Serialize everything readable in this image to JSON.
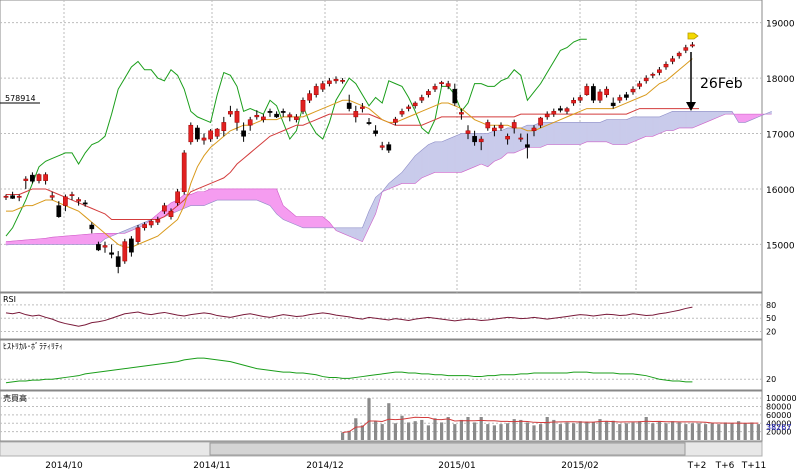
{
  "chart_data": {
    "type": "candlestick",
    "price_axis": {
      "ticks": [
        15000,
        16000,
        17000,
        18000,
        19000
      ],
      "ylim": [
        14250,
        19300
      ]
    },
    "x_labels": [
      "2014/10",
      "2014/11",
      "2014/12",
      "2015/01",
      "2015/02",
      "T+2",
      "T+6",
      "T+11"
    ],
    "price_tag": "578914",
    "annotation": "26Feb",
    "candles": [
      [
        15850,
        15900,
        15800,
        15870
      ],
      [
        15880,
        15950,
        15820,
        15830
      ],
      [
        15850,
        15900,
        15780,
        15870
      ],
      [
        16150,
        16230,
        16000,
        16180
      ],
      [
        16250,
        16300,
        16100,
        16140
      ],
      [
        16150,
        16280,
        16100,
        16260
      ],
      [
        16150,
        16300,
        16080,
        16260
      ],
      [
        15850,
        15950,
        15800,
        15880
      ],
      [
        15700,
        15780,
        15480,
        15500
      ],
      [
        15700,
        15900,
        15600,
        15860
      ],
      [
        15900,
        15950,
        15800,
        15900
      ],
      [
        15780,
        15850,
        15700,
        15810
      ],
      [
        15750,
        15800,
        15680,
        15740
      ],
      [
        15350,
        15400,
        15200,
        15280
      ],
      [
        15000,
        15050,
        14880,
        14900
      ],
      [
        14950,
        15050,
        14850,
        14980
      ],
      [
        14850,
        15000,
        14750,
        14820
      ],
      [
        14780,
        14880,
        14480,
        14600
      ],
      [
        14700,
        15100,
        14650,
        15050
      ],
      [
        15100,
        15150,
        14780,
        14860
      ],
      [
        15050,
        15350,
        15000,
        15300
      ],
      [
        15300,
        15400,
        15250,
        15360
      ],
      [
        15350,
        15450,
        15300,
        15420
      ],
      [
        15400,
        15500,
        15350,
        15450
      ],
      [
        15600,
        15750,
        15550,
        15700
      ],
      [
        15500,
        15650,
        15450,
        15600
      ],
      [
        15750,
        16000,
        15700,
        15950
      ],
      [
        15950,
        16700,
        15900,
        16650
      ],
      [
        16850,
        17200,
        16800,
        17150
      ],
      [
        17100,
        17150,
        16850,
        16900
      ],
      [
        16880,
        17000,
        16800,
        16920
      ],
      [
        16900,
        17080,
        16850,
        17050
      ],
      [
        16950,
        17100,
        16900,
        17080
      ],
      [
        17050,
        17300,
        16950,
        17200
      ],
      [
        17350,
        17500,
        17300,
        17400
      ],
      [
        17200,
        17450,
        17050,
        17400
      ],
      [
        17050,
        17200,
        16850,
        16950
      ],
      [
        17150,
        17300,
        17050,
        17250
      ],
      [
        17300,
        17420,
        17250,
        17330
      ],
      [
        17250,
        17350,
        17200,
        17300
      ],
      [
        17400,
        17450,
        17300,
        17380
      ],
      [
        17350,
        17400,
        17280,
        17300
      ],
      [
        17400,
        17450,
        17300,
        17380
      ],
      [
        17300,
        17380,
        17220,
        17340
      ],
      [
        17250,
        17350,
        17200,
        17300
      ],
      [
        17400,
        17650,
        17350,
        17600
      ],
      [
        17600,
        17780,
        17550,
        17720
      ],
      [
        17700,
        17900,
        17650,
        17850
      ],
      [
        17800,
        17950,
        17750,
        17900
      ],
      [
        17900,
        18000,
        17850,
        17950
      ],
      [
        17950,
        18030,
        17900,
        17980
      ],
      [
        17950,
        18000,
        17900,
        17960
      ],
      [
        17550,
        17700,
        17400,
        17450
      ],
      [
        17300,
        17500,
        17200,
        17400
      ],
      [
        17450,
        17550,
        17380,
        17480
      ],
      [
        17200,
        17280,
        17150,
        17180
      ],
      [
        17050,
        17150,
        16950,
        17000
      ],
      [
        16750,
        16850,
        16700,
        16780
      ],
      [
        16800,
        16850,
        16650,
        16700
      ],
      [
        17200,
        17300,
        17150,
        17260
      ],
      [
        17350,
        17450,
        17300,
        17400
      ],
      [
        17450,
        17520,
        17400,
        17480
      ],
      [
        17500,
        17580,
        17450,
        17550
      ],
      [
        17600,
        17700,
        17550,
        17650
      ],
      [
        17700,
        17800,
        17650,
        17760
      ],
      [
        17800,
        17900,
        17750,
        17850
      ],
      [
        17900,
        17950,
        17850,
        17920
      ],
      [
        17850,
        17950,
        17800,
        17900
      ],
      [
        17800,
        17900,
        17500,
        17550
      ],
      [
        17350,
        17450,
        17250,
        17380
      ],
      [
        17000,
        17150,
        16900,
        17050
      ],
      [
        16950,
        17050,
        16780,
        16850
      ],
      [
        16850,
        16950,
        16700,
        16900
      ],
      [
        17100,
        17250,
        17050,
        17200
      ],
      [
        17050,
        17150,
        16950,
        17100
      ],
      [
        17100,
        17200,
        17050,
        17150
      ],
      [
        16900,
        17000,
        16800,
        16950
      ],
      [
        17100,
        17250,
        17000,
        17200
      ],
      [
        16900,
        17000,
        16850,
        16920
      ],
      [
        16800,
        17000,
        16550,
        16750
      ],
      [
        17050,
        17150,
        16950,
        17100
      ],
      [
        17150,
        17300,
        17100,
        17280
      ],
      [
        17300,
        17400,
        17250,
        17350
      ],
      [
        17350,
        17450,
        17300,
        17400
      ],
      [
        17450,
        17500,
        17380,
        17420
      ],
      [
        17400,
        17480,
        17350,
        17450
      ],
      [
        17550,
        17650,
        17500,
        17600
      ],
      [
        17600,
        17700,
        17550,
        17650
      ],
      [
        17700,
        17900,
        17680,
        17850
      ],
      [
        17850,
        17900,
        17550,
        17600
      ],
      [
        17600,
        17800,
        17550,
        17750
      ],
      [
        17700,
        17850,
        17650,
        17800
      ],
      [
        17550,
        17650,
        17450,
        17500
      ],
      [
        17600,
        17700,
        17550,
        17650
      ],
      [
        17700,
        17750,
        17600,
        17650
      ],
      [
        17750,
        17850,
        17700,
        17800
      ],
      [
        17850,
        17950,
        17800,
        17900
      ],
      [
        17950,
        18050,
        17900,
        18000
      ],
      [
        18050,
        18100,
        18000,
        18070
      ],
      [
        18100,
        18200,
        18050,
        18150
      ],
      [
        18200,
        18300,
        18150,
        18250
      ],
      [
        18300,
        18400,
        18250,
        18350
      ],
      [
        18400,
        18480,
        18350,
        18450
      ],
      [
        18500,
        18600,
        18450,
        18550
      ],
      [
        18600,
        18650,
        18550,
        18600
      ]
    ],
    "conversion_line": [
      15600,
      15600,
      15650,
      15700,
      15700,
      15750,
      15800,
      15800,
      15750,
      15700,
      15650,
      15600,
      15500,
      15400,
      15300,
      15200,
      15100,
      15000,
      14950,
      14950,
      15000,
      15050,
      15100,
      15150,
      15250,
      15350,
      15450,
      15700,
      16100,
      16400,
      16600,
      16750,
      16850,
      16950,
      17050,
      17100,
      17150,
      17150,
      17200,
      17250,
      17250,
      17250,
      17300,
      17300,
      17300,
      17300,
      17350,
      17400,
      17450,
      17500,
      17550,
      17600,
      17600,
      17550,
      17500,
      17450,
      17350,
      17250,
      17200,
      17200,
      17250,
      17300,
      17350,
      17400,
      17450,
      17500,
      17550,
      17550,
      17500,
      17450,
      17350,
      17250,
      17200,
      17150,
      17150,
      17150,
      17150,
      17100,
      17100,
      17050,
      17050,
      17100,
      17150,
      17200,
      17250,
      17300,
      17350,
      17400,
      17450,
      17450,
      17450,
      17450,
      17450,
      17500,
      17550,
      17600,
      17650,
      17700,
      17800,
      17900,
      17950,
      18050,
      18150,
      18250,
      18350
    ],
    "base_line": [
      15900,
      15900,
      15900,
      15950,
      16000,
      16000,
      16000,
      15950,
      15900,
      15850,
      15800,
      15750,
      15700,
      15650,
      15600,
      15550,
      15450,
      15450,
      15450,
      15450,
      15450,
      15450,
      15450,
      15450,
      15500,
      15600,
      15700,
      15800,
      15950,
      16000,
      16050,
      16100,
      16150,
      16200,
      16300,
      16450,
      16550,
      16650,
      16750,
      16850,
      16950,
      17000,
      17050,
      17100,
      17150,
      17150,
      17200,
      17250,
      17300,
      17350,
      17350,
      17350,
      17350,
      17350,
      17350,
      17350,
      17300,
      17250,
      17200,
      17150,
      17150,
      17150,
      17150,
      17150,
      17200,
      17250,
      17300,
      17300,
      17300,
      17300,
      17300,
      17300,
      17300,
      17300,
      17300,
      17300,
      17300,
      17300,
      17350,
      17350,
      17350,
      17350,
      17350,
      17350,
      17350,
      17350,
      17350,
      17350,
      17350,
      17350,
      17350,
      17350,
      17350,
      17350,
      17350,
      17400,
      17450,
      17450,
      17450,
      17450,
      17450,
      17450,
      17450,
      17450,
      17450,
      17450
    ],
    "lagging_span": [
      15150,
      15300,
      15550,
      15800,
      16100,
      16400,
      16500,
      16550,
      16600,
      16650,
      16650,
      16450,
      16650,
      16800,
      16850,
      16950,
      17350,
      17800,
      18000,
      18200,
      18300,
      18150,
      18150,
      18000,
      17950,
      18150,
      18050,
      17800,
      17400,
      17300,
      17250,
      17200,
      17700,
      18100,
      18050,
      17850,
      17400,
      17450,
      17400,
      17350,
      17600,
      17500,
      17200,
      16900,
      17050,
      17500,
      17200,
      17000,
      16900,
      17200,
      17600,
      17800,
      18000,
      17900,
      17700,
      17500,
      17650,
      17550,
      17950,
      17900,
      17850,
      17650,
      17400,
      17100,
      17000,
      17250,
      17850,
      17850,
      17700,
      17400,
      17550,
      17900,
      17900,
      17850,
      17850,
      17950,
      18000,
      18150,
      18050,
      17600,
      17750,
      17900,
      18100,
      18300,
      18500,
      18550,
      18650,
      18700,
      18700
    ],
    "cloud_span_a": [
      15050,
      15060,
      15070,
      15080,
      15090,
      15100,
      15110,
      15130,
      15140,
      15150,
      15160,
      15170,
      15180,
      15190,
      15200,
      15200,
      15200,
      15200,
      15200,
      15250,
      15300,
      15350,
      15450,
      15550,
      15650,
      15750,
      15800,
      15900,
      15900,
      15950,
      15950,
      16000,
      16000,
      16000,
      16000,
      16000,
      16000,
      16000,
      16000,
      16000,
      16000,
      16000,
      15700,
      15600,
      15500,
      15500,
      15500,
      15500,
      15500,
      15400,
      15250,
      15200,
      15150,
      15100,
      15050,
      15300,
      15550,
      15950,
      16000,
      16050,
      16100,
      16100,
      16100,
      16200,
      16250,
      16300,
      16300,
      16300,
      16300,
      16300,
      16350,
      16400,
      16450,
      16400,
      16500,
      16550,
      16650,
      16650,
      16700,
      16750,
      16750,
      16750,
      16800,
      16800,
      16800,
      16800,
      16800,
      16800,
      16850,
      16850,
      16850,
      16850,
      16800,
      16800,
      16800,
      16850,
      16900,
      16950,
      16950,
      17000,
      17050,
      17050,
      17100,
      17100,
      17100,
      17150,
      17200,
      17250,
      17300,
      17350,
      17350,
      17350,
      17350,
      17350,
      17350,
      17350,
      17350
    ],
    "cloud_span_b": [
      14990,
      15000,
      15000,
      15000,
      15000,
      15000,
      15000,
      15000,
      15000,
      15000,
      15000,
      15000,
      15000,
      15000,
      15000,
      15100,
      15150,
      15200,
      15250,
      15300,
      15350,
      15400,
      15450,
      15450,
      15500,
      15550,
      15600,
      15650,
      15700,
      15700,
      15700,
      15750,
      15800,
      15800,
      15800,
      15800,
      15800,
      15800,
      15800,
      15750,
      15700,
      15550,
      15450,
      15400,
      15350,
      15300,
      15300,
      15300,
      15300,
      15300,
      15300,
      15300,
      15300,
      15300,
      15300,
      15600,
      15850,
      15950,
      16100,
      16200,
      16300,
      16450,
      16600,
      16700,
      16800,
      16850,
      16850,
      16900,
      16950,
      17000,
      17000,
      17000,
      17000,
      17000,
      17050,
      17050,
      17100,
      17100,
      17100,
      17150,
      17150,
      17200,
      17200,
      17200,
      17200,
      17200,
      17200,
      17200,
      17200,
      17200,
      17200,
      17250,
      17250,
      17250,
      17250,
      17300,
      17300,
      17300,
      17300,
      17300,
      17350,
      17400,
      17400,
      17400,
      17400,
      17400,
      17400,
      17400,
      17400,
      17400,
      17400,
      17200,
      17200,
      17250,
      17300,
      17350,
      17400
    ],
    "rsi": {
      "label": "RSI",
      "ticks": [
        20,
        50,
        80
      ],
      "ylim": [
        10,
        100
      ],
      "values": [
        62,
        60,
        63,
        58,
        55,
        57,
        52,
        48,
        42,
        38,
        35,
        32,
        35,
        40,
        42,
        45,
        50,
        55,
        60,
        62,
        64,
        60,
        58,
        61,
        63,
        60,
        57,
        55,
        58,
        60,
        62,
        60,
        56,
        54,
        52,
        55,
        58,
        60,
        57,
        54,
        52,
        55,
        58,
        56,
        54,
        55,
        58,
        60,
        62,
        60,
        57,
        55,
        53,
        50,
        48,
        52,
        50,
        48,
        46,
        49,
        47,
        45,
        48,
        50,
        52,
        50,
        48,
        46,
        44,
        46,
        48,
        47,
        45,
        46,
        48,
        50,
        52,
        51,
        49,
        50,
        52,
        50,
        48,
        50,
        52,
        54,
        56,
        58,
        57,
        55,
        57,
        59,
        58,
        56,
        57,
        60,
        58,
        56,
        57,
        60,
        62,
        65,
        68,
        72,
        75
      ]
    },
    "hv": {
      "label": "ﾋｽﾄﾘｶﾙ･ﾎﾞﾗﾃｨﾘﾃｨ",
      "ticks": [
        20
      ],
      "ylim": [
        10,
        60
      ],
      "values": [
        16,
        17,
        18,
        18,
        19,
        19,
        20,
        20,
        21,
        22,
        23,
        24,
        26,
        27,
        28,
        29,
        30,
        31,
        32,
        33,
        34,
        35,
        36,
        37,
        38,
        39,
        40,
        42,
        43,
        44,
        44,
        43,
        42,
        41,
        40,
        38,
        36,
        34,
        32,
        31,
        30,
        29,
        28,
        28,
        27,
        27,
        26,
        25,
        23,
        22,
        22,
        21,
        21,
        22,
        23,
        24,
        25,
        26,
        27,
        28,
        28,
        27,
        27,
        26,
        26,
        25,
        25,
        24,
        24,
        24,
        24,
        23,
        23,
        24,
        24,
        25,
        25,
        25,
        26,
        26,
        27,
        27,
        27,
        27,
        27,
        27,
        28,
        28,
        28,
        27,
        27,
        27,
        27,
        26,
        26,
        26,
        25,
        24,
        22,
        20,
        19,
        18,
        18,
        17,
        17
      ]
    },
    "volume": {
      "label": "売買高",
      "ticks": [
        20000,
        40000,
        60000,
        80000,
        100000
      ],
      "ylim": [
        0,
        110000
      ],
      "current": "38267",
      "start_index": 51,
      "values": [
        18000,
        22000,
        52000,
        35000,
        100000,
        45000,
        38000,
        88000,
        40000,
        58000,
        42000,
        45000,
        48000,
        35000,
        52000,
        42000,
        55000,
        38000,
        48000,
        55000,
        42000,
        55000,
        38000,
        35000,
        38000,
        40000,
        50000,
        48000,
        42000,
        35000,
        38000,
        55000,
        48000,
        38000,
        42000,
        40000,
        45000,
        44000,
        42000,
        50000,
        45000,
        46000,
        38000,
        40000,
        42000,
        45000,
        55000,
        40000,
        45000,
        40000,
        45000,
        42000,
        38000,
        40000,
        40000,
        38000,
        40000,
        38000,
        42000,
        40000,
        45000,
        40000,
        42000,
        38000
      ]
    }
  }
}
